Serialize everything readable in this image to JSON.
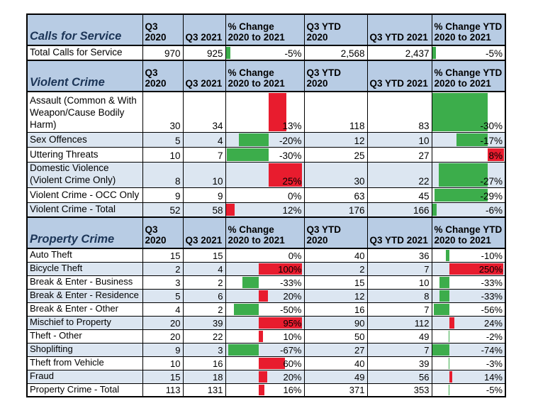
{
  "colors": {
    "red": "#e81c2e",
    "green": "#3cad4b",
    "header_bg": "#b8cce4",
    "band_bg": "#dce6f1",
    "section_title_text": "#1c3557",
    "grid": "#000000"
  },
  "chart_data": {
    "type": "table",
    "columns": [
      "Q3 2020",
      "Q3 2021",
      "% Change\n2020 to 2021",
      "Q3 YTD 2020",
      "Q3 YTD 2021",
      "% Change YTD\n2020 to 2021"
    ],
    "sections": [
      {
        "title": "Calls for Service",
        "rows": [
          {
            "label": "Total Calls for Service",
            "v": [
              "970",
              "925",
              "-5%",
              "2,568",
              "2,437",
              "-5%"
            ],
            "bar_q3": {
              "color": "green",
              "left": 0.005,
              "width": 0.05
            },
            "bar_ytd": {
              "color": "green",
              "left": 0.005,
              "width": 0.05
            }
          }
        ]
      },
      {
        "title": "Violent Crime",
        "rows": [
          {
            "label": "Assault (Common & With Weapon/Cause Bodily Harm)",
            "v": [
              "30",
              "34",
              "13%",
              "118",
              "83",
              "-30%"
            ],
            "bar_q3": {
              "color": "red",
              "left": 0.55,
              "width": 0.23
            },
            "bar_ytd": {
              "color": "green",
              "left": 0.0,
              "width": 0.77
            }
          },
          {
            "label": "Sex Offences",
            "v": [
              "5",
              "4",
              "-20%",
              "12",
              "10",
              "-17%"
            ],
            "bar_q3": {
              "color": "green",
              "left": 0.17,
              "width": 0.38
            },
            "bar_ytd": {
              "color": "green",
              "left": 0.34,
              "width": 0.43
            }
          },
          {
            "label": "Uttering Threats",
            "v": [
              "10",
              "7",
              "-30%",
              "25",
              "27",
              "8%"
            ],
            "bar_q3": {
              "color": "green",
              "left": 0.01,
              "width": 0.54
            },
            "bar_ytd": {
              "color": "red",
              "left": 0.77,
              "width": 0.22
            }
          },
          {
            "label": "Domestic Violence (Violent Crime Only)",
            "v": [
              "8",
              "10",
              "25%",
              "30",
              "22",
              "-27%"
            ],
            "bar_q3": {
              "color": "red",
              "left": 0.55,
              "width": 0.43
            },
            "bar_ytd": {
              "color": "green",
              "left": 0.09,
              "width": 0.68
            }
          },
          {
            "label": "Violent Crime - OCC Only",
            "v": [
              "9",
              "9",
              "0%",
              "63",
              "45",
              "-29%"
            ],
            "bar_q3": null,
            "bar_ytd": {
              "color": "green",
              "left": 0.03,
              "width": 0.74
            }
          },
          {
            "label": "Violent Crime - Total",
            "v": [
              "52",
              "58",
              "12%",
              "176",
              "166",
              "-6%"
            ],
            "bar_q3": {
              "color": "red",
              "left": 0.005,
              "width": 0.11
            },
            "bar_ytd": {
              "color": "green",
              "left": 0.0,
              "width": 0.06
            }
          }
        ]
      },
      {
        "title": "Property Crime",
        "rows": [
          {
            "label": "Auto Theft",
            "v": [
              "15",
              "15",
              "0%",
              "40",
              "36",
              "-10%"
            ],
            "bar_q3": null,
            "bar_ytd": {
              "color": "green",
              "left": 0.19,
              "width": 0.05
            }
          },
          {
            "label": "Bicycle Theft",
            "v": [
              "2",
              "4",
              "100%",
              "2",
              "7",
              "250%"
            ],
            "bar_q3": {
              "color": "red",
              "left": 0.42,
              "width": 0.56
            },
            "bar_ytd": {
              "color": "red",
              "left": 0.24,
              "width": 0.74
            }
          },
          {
            "label": "Break & Enter - Business",
            "v": [
              "3",
              "2",
              "-33%",
              "15",
              "10",
              "-33%"
            ],
            "bar_q3": {
              "color": "green",
              "left": 0.21,
              "width": 0.21
            },
            "bar_ytd": {
              "color": "green",
              "left": 0.1,
              "width": 0.14
            }
          },
          {
            "label": "Break & Enter - Residence",
            "v": [
              "5",
              "6",
              "20%",
              "12",
              "8",
              "-33%"
            ],
            "bar_q3": {
              "color": "red",
              "left": 0.42,
              "width": 0.12
            },
            "bar_ytd": {
              "color": "green",
              "left": 0.1,
              "width": 0.14
            }
          },
          {
            "label": "Break & Enter - Other",
            "v": [
              "4",
              "2",
              "-50%",
              "16",
              "7",
              "-56%"
            ],
            "bar_q3": {
              "color": "green",
              "left": 0.1,
              "width": 0.32
            },
            "bar_ytd": {
              "color": "green",
              "left": 0.02,
              "width": 0.22
            }
          },
          {
            "label": "Mischief to Property",
            "v": [
              "20",
              "39",
              "95%",
              "90",
              "112",
              "24%"
            ],
            "bar_q3": {
              "color": "red",
              "left": 0.42,
              "width": 0.56
            },
            "bar_ytd": {
              "color": "red",
              "left": 0.24,
              "width": 0.07
            }
          },
          {
            "label": "Theft - Other",
            "v": [
              "20",
              "22",
              "10%",
              "50",
              "49",
              "-2%"
            ],
            "bar_q3": {
              "color": "red",
              "left": 0.42,
              "width": 0.06
            },
            "bar_ytd": {
              "color": "green",
              "left": 0.228,
              "width": 0.015
            }
          },
          {
            "label": "Shoplifting",
            "v": [
              "9",
              "3",
              "-67%",
              "27",
              "7",
              "-74%"
            ],
            "bar_q3": {
              "color": "green",
              "left": 0.03,
              "width": 0.39
            },
            "bar_ytd": {
              "color": "green",
              "left": 0.0,
              "width": 0.235
            }
          },
          {
            "label": "Theft from Vehicle",
            "v": [
              "10",
              "16",
              "60%",
              "40",
              "39",
              "-3%"
            ],
            "bar_q3": {
              "color": "red",
              "left": 0.42,
              "width": 0.34
            },
            "bar_ytd": {
              "color": "green",
              "left": 0.228,
              "width": 0.015
            }
          },
          {
            "label": "Fraud",
            "v": [
              "15",
              "18",
              "20%",
              "49",
              "56",
              "14%"
            ],
            "bar_q3": {
              "color": "red",
              "left": 0.42,
              "width": 0.11
            },
            "bar_ytd": {
              "color": "red",
              "left": 0.24,
              "width": 0.04
            }
          },
          {
            "label": "Property Crime - Total",
            "v": [
              "113",
              "131",
              "16%",
              "371",
              "353",
              "-5%"
            ],
            "bar_q3": {
              "color": "red",
              "left": 0.42,
              "width": 0.08
            },
            "bar_ytd": {
              "color": "green",
              "left": 0.228,
              "width": 0.015
            }
          }
        ]
      }
    ]
  }
}
